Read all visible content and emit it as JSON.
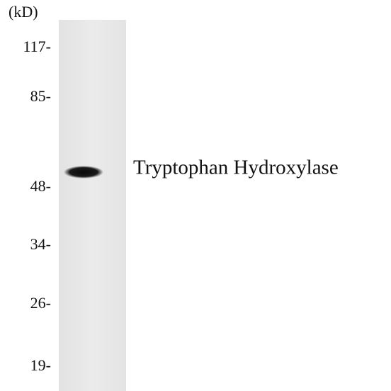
{
  "unit_label": "(kD)",
  "markers": [
    "117-",
    "85-",
    "48-",
    "34-",
    "26-",
    "19-"
  ],
  "band_label": "Tryptophan Hydroxylase"
}
